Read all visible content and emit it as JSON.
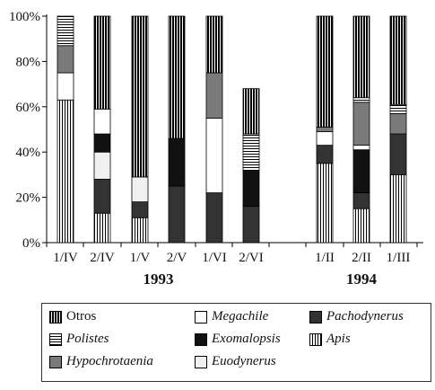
{
  "chart_data": {
    "type": "bar",
    "stacked": true,
    "ylim": [
      0,
      100
    ],
    "yticks": [
      "0%",
      "20%",
      "40%",
      "60%",
      "80%",
      "100%"
    ],
    "ytick_values": [
      0,
      20,
      40,
      60,
      80,
      100
    ],
    "categories": [
      "1/IV",
      "2/IV",
      "1/V",
      "2/V",
      "1/VI",
      "2/VI",
      "1/II",
      "2/II",
      "1/III"
    ],
    "groups": [
      {
        "label": "1993",
        "first": 0,
        "last": 5
      },
      {
        "label": "1994",
        "first": 6,
        "last": 8
      }
    ],
    "series": [
      {
        "name": "Apis",
        "key": "apis",
        "italic": true,
        "values": [
          63,
          13,
          11,
          0,
          0,
          0,
          35,
          15,
          30
        ]
      },
      {
        "name": "Pachodynerus",
        "key": "pachodynerus",
        "italic": true,
        "values": [
          0,
          15,
          7,
          25,
          22,
          16,
          8,
          7,
          18
        ]
      },
      {
        "name": "Euodynerus",
        "key": "euodynerus",
        "italic": true,
        "values": [
          0,
          12,
          11,
          0,
          0,
          0,
          0,
          0,
          0
        ]
      },
      {
        "name": "Exomalopsis",
        "key": "exomalopsis",
        "italic": true,
        "values": [
          0,
          8,
          0,
          21,
          0,
          16,
          0,
          19,
          0
        ]
      },
      {
        "name": "Megachile",
        "key": "megachile",
        "italic": true,
        "values": [
          12,
          11,
          0,
          0,
          33,
          0,
          6,
          2,
          0
        ]
      },
      {
        "name": "Hypochrotaenia",
        "key": "hypochrotaenia",
        "italic": true,
        "values": [
          12,
          0,
          0,
          0,
          20,
          0,
          2,
          19,
          9
        ]
      },
      {
        "name": "Polistes",
        "key": "polistes",
        "italic": true,
        "values": [
          13,
          0,
          0,
          0,
          0,
          16,
          0,
          2,
          4
        ]
      },
      {
        "name": "Otros",
        "key": "otros",
        "italic": false,
        "values": [
          0,
          41,
          71,
          54,
          25,
          20,
          49,
          36,
          39
        ]
      }
    ],
    "legend_order": [
      "otros",
      "megachile",
      "pachodynerus",
      "polistes",
      "exomalopsis",
      "apis",
      "hypochrotaenia",
      "euodynerus"
    ],
    "legend_placement": "bottom",
    "grid": false
  }
}
